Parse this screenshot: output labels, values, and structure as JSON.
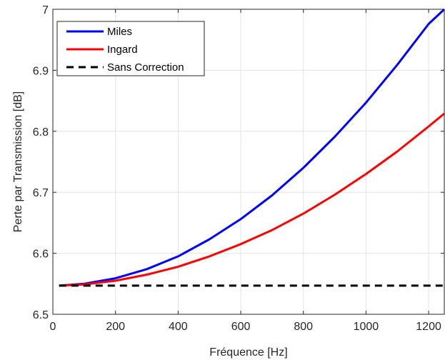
{
  "chart_data": {
    "type": "line",
    "title": "",
    "xlabel": "Fréquence [Hz]",
    "ylabel": "Perte par Transmission [dB]",
    "xlim": [
      0,
      1250
    ],
    "ylim": [
      6.5,
      7.0
    ],
    "xticks": [
      0,
      200,
      400,
      600,
      800,
      1000,
      1200
    ],
    "yticks": [
      6.5,
      6.6,
      6.7,
      6.8,
      6.9,
      7.0
    ],
    "xtick_labels": [
      "0",
      "200",
      "400",
      "600",
      "800",
      "1000",
      "1200"
    ],
    "ytick_labels": [
      "6.5",
      "6.6",
      "6.7",
      "6.8",
      "6.9",
      "7"
    ],
    "grid": true,
    "legend_position": "top-left",
    "series": [
      {
        "name": "Miles",
        "color": "#0000ff",
        "style": "solid",
        "x": [
          20,
          100,
          200,
          300,
          400,
          500,
          600,
          700,
          800,
          900,
          1000,
          1100,
          1200,
          1250
        ],
        "y": [
          6.547,
          6.55,
          6.559,
          6.574,
          6.595,
          6.623,
          6.656,
          6.695,
          6.74,
          6.791,
          6.847,
          6.909,
          6.976,
          7.0
        ]
      },
      {
        "name": "Ingard",
        "color": "#ff0000",
        "style": "solid",
        "x": [
          20,
          100,
          200,
          300,
          400,
          500,
          600,
          700,
          800,
          900,
          1000,
          1100,
          1200,
          1250
        ],
        "y": [
          6.547,
          6.549,
          6.555,
          6.565,
          6.578,
          6.595,
          6.615,
          6.638,
          6.665,
          6.696,
          6.73,
          6.767,
          6.808,
          6.829
        ]
      },
      {
        "name": "Sans Correction",
        "color": "#000000",
        "style": "dashed",
        "x": [
          20,
          1250
        ],
        "y": [
          6.547,
          6.547
        ]
      }
    ]
  }
}
